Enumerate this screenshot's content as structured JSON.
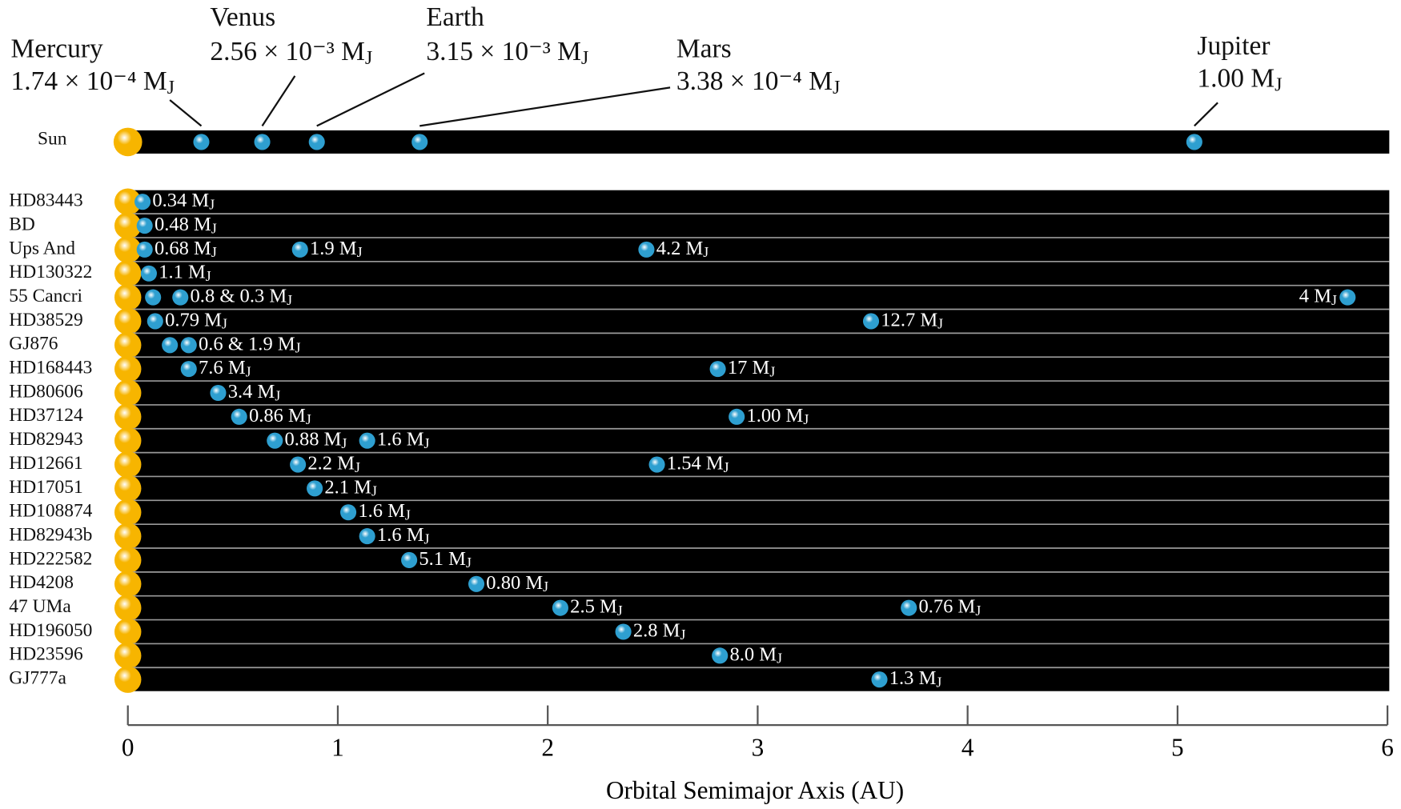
{
  "chart_data": {
    "type": "orbits",
    "xlabel": "Orbital Semimajor Axis (AU)",
    "xlim": [
      0,
      6
    ],
    "xticks": [
      0,
      1,
      2,
      3,
      4,
      5,
      6
    ],
    "star_color": "#f7b500",
    "planet_color": "#2e9fd0",
    "band_color": "#000000",
    "solar_system": {
      "name": "Sun",
      "planets": [
        {
          "name": "Mercury",
          "a": 0.35,
          "label": "1.74 × 10⁻⁴ MJ"
        },
        {
          "name": "Venus",
          "a": 0.64,
          "label": "2.56 × 10⁻³ MJ"
        },
        {
          "name": "Earth",
          "a": 0.9,
          "label": "3.15 × 10⁻³ MJ"
        },
        {
          "name": "Mars",
          "a": 1.39,
          "label": "3.38 × 10⁻⁴ MJ"
        },
        {
          "name": "Jupiter",
          "a": 5.08,
          "label": "1.00 MJ"
        }
      ]
    },
    "systems": [
      {
        "name": "HD83443",
        "planets": [
          {
            "a": 0.07,
            "label": "0.34 MJ"
          }
        ]
      },
      {
        "name": "BD",
        "planets": [
          {
            "a": 0.08,
            "label": "0.48 MJ"
          }
        ]
      },
      {
        "name": "Ups And",
        "planets": [
          {
            "a": 0.08,
            "label": "0.68 MJ"
          },
          {
            "a": 0.82,
            "label": "1.9 MJ"
          },
          {
            "a": 2.47,
            "label": "4.2 MJ"
          }
        ]
      },
      {
        "name": "HD130322",
        "planets": [
          {
            "a": 0.1,
            "label": "1.1 MJ"
          }
        ]
      },
      {
        "name": "55 Cancri",
        "planets": [
          {
            "a": 0.12
          },
          {
            "a": 0.25,
            "label": "0.8 & 0.3 MJ"
          },
          {
            "a": 5.81,
            "label": "4 MJ"
          }
        ]
      },
      {
        "name": "HD38529",
        "planets": [
          {
            "a": 0.13,
            "label": "0.79 MJ"
          },
          {
            "a": 3.54,
            "label": "12.7 MJ"
          }
        ]
      },
      {
        "name": "GJ876",
        "planets": [
          {
            "a": 0.2
          },
          {
            "a": 0.29,
            "label": "0.6 & 1.9 MJ"
          }
        ]
      },
      {
        "name": "HD168443",
        "planets": [
          {
            "a": 0.29,
            "label": "7.6 MJ"
          },
          {
            "a": 2.81,
            "label": "17 MJ"
          }
        ]
      },
      {
        "name": "HD80606",
        "planets": [
          {
            "a": 0.43,
            "label": "3.4 MJ"
          }
        ]
      },
      {
        "name": "HD37124",
        "planets": [
          {
            "a": 0.53,
            "label": "0.86 MJ"
          },
          {
            "a": 2.9,
            "label": "1.00 MJ"
          }
        ]
      },
      {
        "name": "HD82943",
        "planets": [
          {
            "a": 0.7,
            "label": "0.88 MJ"
          },
          {
            "a": 1.14,
            "label": "1.6 MJ"
          }
        ]
      },
      {
        "name": "HD12661",
        "planets": [
          {
            "a": 0.81,
            "label": "2.2 MJ"
          },
          {
            "a": 2.52,
            "label": "1.54 MJ"
          }
        ]
      },
      {
        "name": "HD17051",
        "planets": [
          {
            "a": 0.89,
            "label": "2.1 MJ"
          }
        ]
      },
      {
        "name": "HD108874",
        "planets": [
          {
            "a": 1.05,
            "label": "1.6 MJ"
          }
        ]
      },
      {
        "name": "HD82943b",
        "planets": [
          {
            "a": 1.14,
            "label": "1.6 MJ"
          }
        ]
      },
      {
        "name": "HD222582",
        "planets": [
          {
            "a": 1.34,
            "label": "5.1 MJ"
          }
        ]
      },
      {
        "name": "HD4208",
        "planets": [
          {
            "a": 1.66,
            "label": "0.80 MJ"
          }
        ]
      },
      {
        "name": "47 UMa",
        "planets": [
          {
            "a": 2.06,
            "label": "2.5 MJ"
          },
          {
            "a": 3.72,
            "label": "0.76 MJ"
          }
        ]
      },
      {
        "name": "HD196050",
        "planets": [
          {
            "a": 2.36,
            "label": "2.8 MJ"
          }
        ]
      },
      {
        "name": "HD23596",
        "planets": [
          {
            "a": 2.82,
            "label": "8.0 MJ"
          }
        ]
      },
      {
        "name": "GJ777a",
        "planets": [
          {
            "a": 3.58,
            "label": "1.3 MJ"
          }
        ]
      }
    ]
  }
}
